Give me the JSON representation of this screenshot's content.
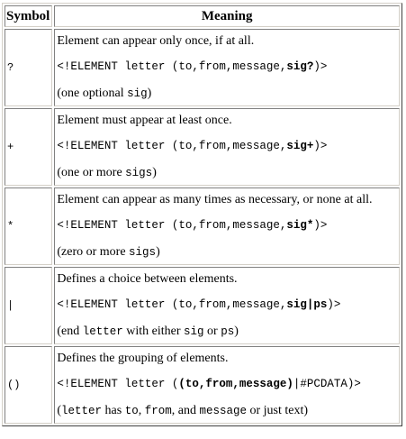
{
  "headers": {
    "symbol": "Symbol",
    "meaning": "Meaning"
  },
  "rows": [
    {
      "symbol": "?",
      "description": "Element can appear only once, if at all.",
      "code_prefix": "<!ELEMENT letter (to,from,message,",
      "code_bold": "sig?",
      "code_suffix": ")>",
      "note_parts": [
        "(one optional ",
        "sig",
        ")"
      ]
    },
    {
      "symbol": "+",
      "description": "Element must appear at least once.",
      "code_prefix": "<!ELEMENT letter (to,from,message,",
      "code_bold": "sig+",
      "code_suffix": ")>",
      "note_parts": [
        "(one or more ",
        "sigs",
        ")"
      ]
    },
    {
      "symbol": "*",
      "description": "Element can appear as many times as necessary, or none at all.",
      "code_prefix": "<!ELEMENT letter (to,from,message,",
      "code_bold": "sig*",
      "code_suffix": ")>",
      "note_parts": [
        "(zero or more ",
        "sigs",
        ")"
      ]
    },
    {
      "symbol": "|",
      "description": "Defines a choice between elements.",
      "code_prefix": "<!ELEMENT letter (to,from,message,",
      "code_bold": "sig|ps",
      "code_suffix": ")>",
      "note_parts": [
        "(end ",
        "letter",
        " with either ",
        "sig",
        " or ",
        "ps",
        ")"
      ]
    },
    {
      "symbol": "()",
      "description": "Defines the grouping of elements.",
      "code_prefix": "<!ELEMENT letter (",
      "code_bold": "(to,from,message)",
      "code_suffix": "|#PCDATA)>",
      "note_parts": [
        "(",
        "letter",
        " has ",
        "to",
        ", ",
        "from",
        ", and ",
        "message",
        " or just text)"
      ]
    }
  ]
}
